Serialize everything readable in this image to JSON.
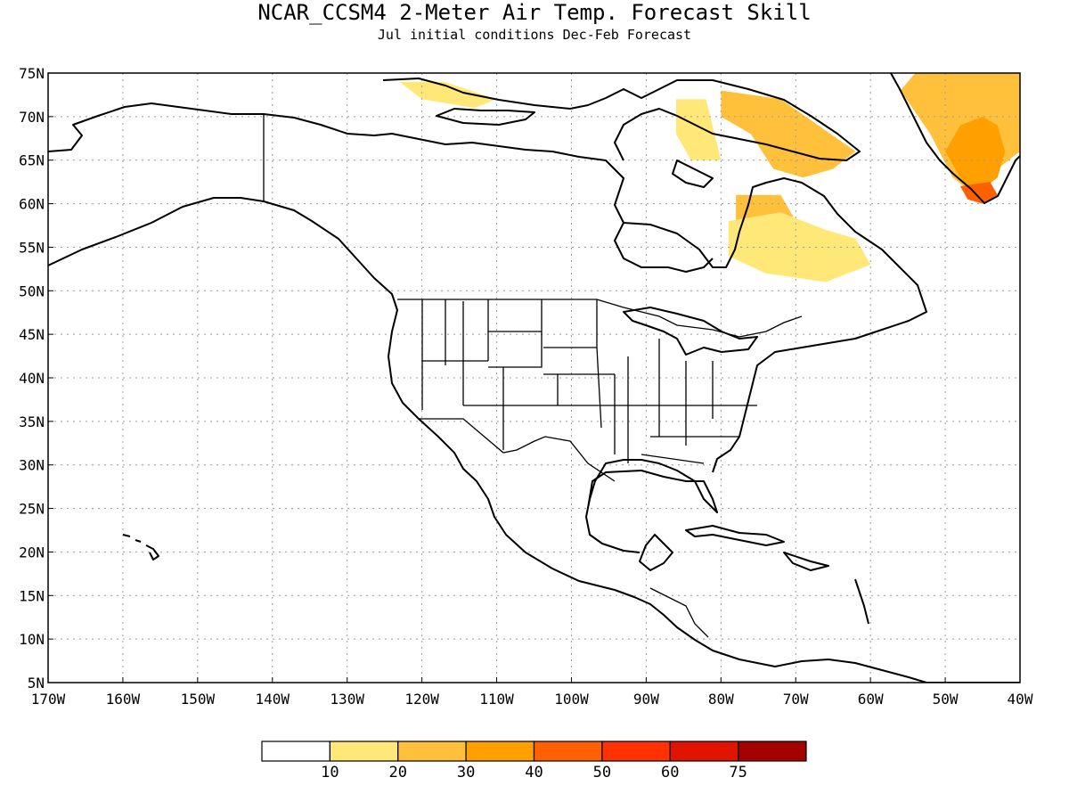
{
  "title": "NCAR_CCSM4 2-Meter Air Temp. Forecast Skill",
  "subtitle": "Jul initial conditions   Dec-Feb Forecast",
  "map": {
    "lon_range": [
      -170,
      -40
    ],
    "lat_range": [
      5,
      75
    ],
    "lon_ticks": [
      {
        "value": -170,
        "label": "170W"
      },
      {
        "value": -160,
        "label": "160W"
      },
      {
        "value": -150,
        "label": "150W"
      },
      {
        "value": -140,
        "label": "140W"
      },
      {
        "value": -130,
        "label": "130W"
      },
      {
        "value": -120,
        "label": "120W"
      },
      {
        "value": -110,
        "label": "110W"
      },
      {
        "value": -100,
        "label": "100W"
      },
      {
        "value": -90,
        "label": "90W"
      },
      {
        "value": -80,
        "label": "80W"
      },
      {
        "value": -70,
        "label": "70W"
      },
      {
        "value": -60,
        "label": "60W"
      },
      {
        "value": -50,
        "label": "50W"
      },
      {
        "value": -40,
        "label": "40W"
      }
    ],
    "lat_ticks": [
      {
        "value": 75,
        "label": "75N"
      },
      {
        "value": 70,
        "label": "70N"
      },
      {
        "value": 65,
        "label": "65N"
      },
      {
        "value": 60,
        "label": "60N"
      },
      {
        "value": 55,
        "label": "55N"
      },
      {
        "value": 50,
        "label": "50N"
      },
      {
        "value": 45,
        "label": "45N"
      },
      {
        "value": 40,
        "label": "40N"
      },
      {
        "value": 35,
        "label": "35N"
      },
      {
        "value": 30,
        "label": "30N"
      },
      {
        "value": 25,
        "label": "25N"
      },
      {
        "value": 20,
        "label": "20N"
      },
      {
        "value": 15,
        "label": "15N"
      },
      {
        "value": 10,
        "label": "10N"
      },
      {
        "value": 5,
        "label": "5N"
      }
    ],
    "grid": true
  },
  "colorbar": {
    "colors": [
      "#ffffff",
      "#ffe878",
      "#ffc03c",
      "#ffa000",
      "#ff6000",
      "#ff3200",
      "#e11400",
      "#a50000"
    ],
    "labels": [
      "10",
      "20",
      "30",
      "40",
      "50",
      "60",
      "75"
    ]
  },
  "skill_regions": [
    {
      "name": "greenland-east",
      "level": 2,
      "poly": [
        [
          -54,
          75
        ],
        [
          -40,
          75
        ],
        [
          -40,
          66
        ],
        [
          -43,
          64
        ],
        [
          -46,
          61
        ],
        [
          -49,
          63
        ],
        [
          -52,
          68
        ],
        [
          -56,
          73
        ]
      ]
    },
    {
      "name": "greenland-southeast",
      "level": 3,
      "poly": [
        [
          -48,
          69
        ],
        [
          -45,
          70
        ],
        [
          -43,
          69
        ],
        [
          -42,
          66
        ],
        [
          -43,
          63
        ],
        [
          -46,
          61
        ],
        [
          -48,
          63
        ],
        [
          -50,
          66
        ]
      ]
    },
    {
      "name": "greenland-south-tip",
      "level": 4,
      "poly": [
        [
          -48,
          62
        ],
        [
          -44,
          62.5
        ],
        [
          -43,
          61
        ],
        [
          -45,
          60
        ],
        [
          -47,
          60.5
        ]
      ]
    },
    {
      "name": "baffin-island",
      "level": 2,
      "poly": [
        [
          -80,
          73
        ],
        [
          -72,
          72
        ],
        [
          -67,
          69
        ],
        [
          -62,
          66
        ],
        [
          -65,
          64
        ],
        [
          -69,
          63
        ],
        [
          -73,
          64
        ],
        [
          -76,
          68
        ],
        [
          -80,
          70
        ]
      ]
    },
    {
      "name": "northern-quebec-west",
      "level": 2,
      "poly": [
        [
          -78,
          61
        ],
        [
          -72,
          61
        ],
        [
          -70,
          58
        ],
        [
          -74,
          56
        ],
        [
          -78,
          58
        ]
      ]
    },
    {
      "name": "quebec-labrador",
      "level": 1,
      "poly": [
        [
          -79,
          58
        ],
        [
          -72,
          59
        ],
        [
          -66,
          57
        ],
        [
          -62,
          56
        ],
        [
          -60,
          53
        ],
        [
          -66,
          51
        ],
        [
          -74,
          52
        ],
        [
          -79,
          54
        ]
      ]
    },
    {
      "name": "canadian-arctic-islands",
      "level": 1,
      "poly": [
        [
          -123,
          74
        ],
        [
          -117,
          74
        ],
        [
          -110,
          72
        ],
        [
          -113,
          71
        ],
        [
          -120,
          72
        ]
      ]
    },
    {
      "name": "foxe-basin",
      "level": 1,
      "poly": [
        [
          -86,
          72
        ],
        [
          -82,
          72
        ],
        [
          -80,
          65
        ],
        [
          -84,
          65
        ],
        [
          -86,
          68
        ]
      ]
    }
  ]
}
